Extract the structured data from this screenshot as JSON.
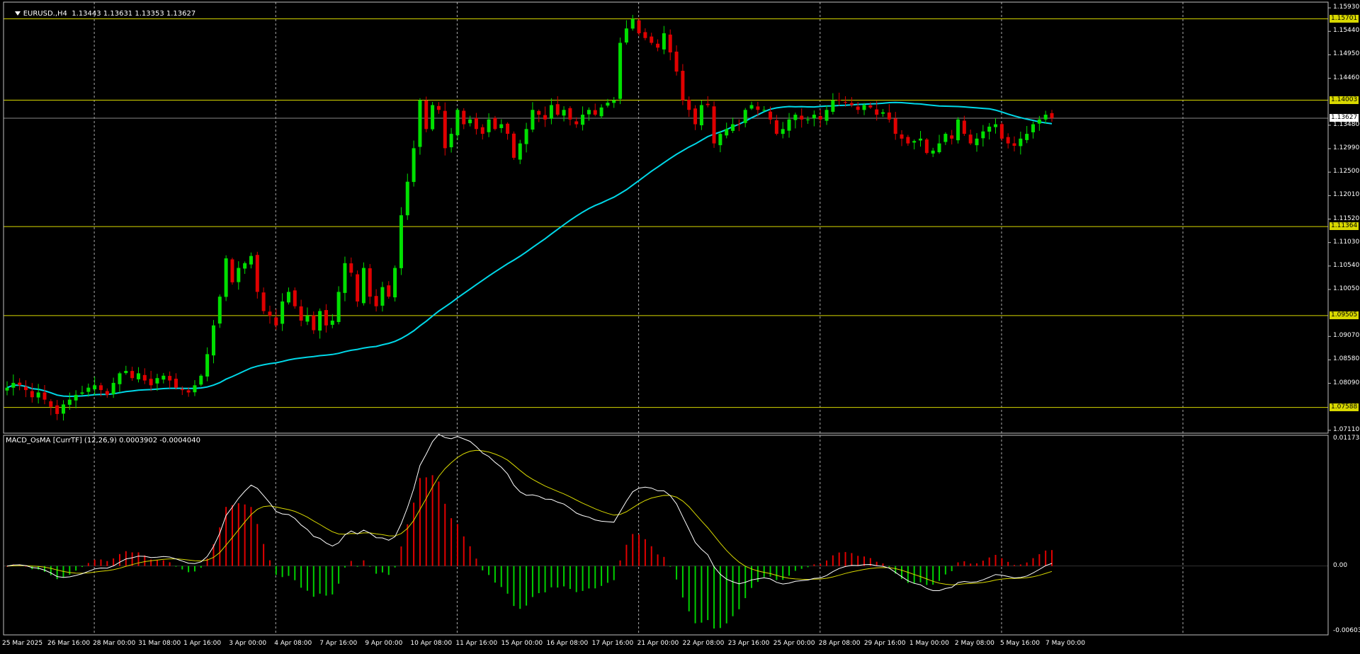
{
  "header": {
    "symbol": "EURUSD.,H4",
    "ohlc": "1.13443 1.13631 1.13353 1.13627",
    "indicator": "MACD_OsMA [CurrTF] (12,26,9) 0.0003902 -0.0004040"
  },
  "colors": {
    "background": "#000000",
    "bull": "#00e000",
    "bear": "#e00000",
    "ma": "#00d8e8",
    "level": "#d8d800",
    "grid": "#aaaaaa",
    "macd_main": "#ffffff",
    "macd_signal": "#d8d800",
    "hist_up": "#e00000",
    "hist_down": "#00d000"
  },
  "chart_data": {
    "type": "candlestick",
    "symbol": "EURUSD.",
    "timeframe": "H4",
    "price_axis": {
      "ticks": [
        "1.15930",
        "1.15440",
        "1.14950",
        "1.14460",
        "1.13480",
        "1.12990",
        "1.12500",
        "1.12010",
        "1.11520",
        "1.11030",
        "1.10540",
        "1.10050",
        "1.09070",
        "1.08580",
        "1.08090",
        "1.07110"
      ],
      "range": [
        1.0705,
        1.1605
      ]
    },
    "levels": [
      {
        "value": 1.15701,
        "label": "1.15701"
      },
      {
        "value": 1.14003,
        "label": "1.14003"
      },
      {
        "value": 1.11364,
        "label": "1.11364"
      },
      {
        "value": 1.09505,
        "label": "1.09505"
      },
      {
        "value": 1.07588,
        "label": "1.07588"
      }
    ],
    "current_price": {
      "value": 1.13627,
      "label": "1.13627"
    },
    "time_axis": [
      "25 Mar 2025",
      "26 Mar 16:00",
      "28 Mar 00:00",
      "31 Mar 08:00",
      "1 Apr 16:00",
      "3 Apr 00:00",
      "4 Apr 08:00",
      "7 Apr 16:00",
      "9 Apr 00:00",
      "10 Apr 08:00",
      "11 Apr 16:00",
      "15 Apr 00:00",
      "16 Apr 08:00",
      "17 Apr 16:00",
      "21 Apr 00:00",
      "22 Apr 08:00",
      "23 Apr 16:00",
      "25 Apr 00:00",
      "28 Apr 08:00",
      "29 Apr 16:00",
      "1 May 00:00",
      "2 May 08:00",
      "5 May 16:00",
      "7 May 00:00"
    ],
    "close": [
      1.08,
      1.081,
      1.0805,
      1.0795,
      1.078,
      1.079,
      1.0775,
      1.076,
      1.0745,
      1.0765,
      1.0775,
      1.0785,
      1.079,
      1.08,
      1.0805,
      1.0795,
      1.0785,
      1.081,
      1.083,
      1.0835,
      1.082,
      1.083,
      1.0815,
      1.0805,
      1.082,
      1.0825,
      1.0815,
      1.08,
      1.0795,
      1.079,
      1.0805,
      1.0825,
      1.087,
      1.093,
      1.099,
      1.107,
      1.102,
      1.105,
      1.106,
      1.1075,
      1.1,
      1.096,
      1.095,
      1.093,
      1.098,
      1.1,
      1.097,
      1.094,
      1.095,
      1.092,
      1.096,
      1.093,
      1.094,
      1.1,
      1.106,
      1.104,
      1.098,
      1.105,
      1.099,
      1.097,
      1.101,
      1.099,
      1.105,
      1.116,
      1.123,
      1.13,
      1.14,
      1.134,
      1.139,
      1.138,
      1.13,
      1.133,
      1.138,
      1.135,
      1.136,
      1.134,
      1.133,
      1.136,
      1.134,
      1.135,
      1.133,
      1.128,
      1.131,
      1.134,
      1.138,
      1.137,
      1.136,
      1.139,
      1.137,
      1.138,
      1.136,
      1.135,
      1.137,
      1.138,
      1.137,
      1.1385,
      1.1395,
      1.14,
      1.152,
      1.155,
      1.157,
      1.154,
      1.153,
      1.152,
      1.151,
      1.154,
      1.15,
      1.146,
      1.14,
      1.138,
      1.135,
      1.139,
      1.139,
      1.131,
      1.133,
      1.134,
      1.135,
      1.135,
      1.138,
      1.139,
      1.138,
      1.138,
      1.136,
      1.133,
      1.134,
      1.136,
      1.137,
      1.136,
      1.136,
      1.137,
      1.136,
      1.138,
      1.14,
      1.14,
      1.1395,
      1.139,
      1.138,
      1.139,
      1.1385,
      1.137,
      1.1375,
      1.136,
      1.133,
      1.132,
      1.131,
      1.1315,
      1.132,
      1.129,
      1.1295,
      1.131,
      1.133,
      1.132,
      1.136,
      1.133,
      1.131,
      1.132,
      1.1335,
      1.1345,
      1.135,
      1.132,
      1.131,
      1.1305,
      1.132,
      1.133,
      1.135,
      1.136,
      1.137,
      1.1363
    ],
    "ma_last": 1.1346,
    "indicator": {
      "name": "MACD_OsMA [CurrTF] (12,26,9)",
      "value1": 0.0003902,
      "value2": -0.000404,
      "axis_ticks": [
        "0.0117388",
        "0.00",
        "-0.006031"
      ],
      "range": [
        -0.006031,
        0.0117388
      ]
    }
  }
}
